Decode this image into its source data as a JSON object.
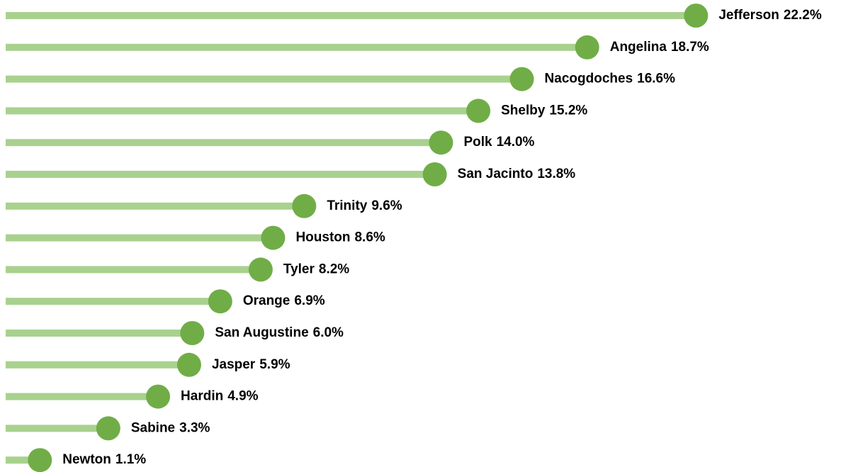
{
  "chart_data": {
    "type": "lollipop",
    "categories": [
      "Jefferson",
      "Angelina",
      "Nacogdoches",
      "Shelby",
      "Polk",
      "San Jacinto",
      "Trinity",
      "Houston",
      "Tyler",
      "Orange",
      "San Augustine",
      "Jasper",
      "Hardin",
      "Sabine",
      "Newton"
    ],
    "values": [
      22.2,
      18.7,
      16.6,
      15.2,
      14.0,
      13.8,
      9.6,
      8.6,
      8.2,
      6.9,
      6.0,
      5.9,
      4.9,
      3.3,
      1.1
    ],
    "value_labels": [
      "22.2%",
      "18.7%",
      "16.6%",
      "15.2%",
      "14.0%",
      "13.8%",
      "9.6%",
      "8.6%",
      "8.2%",
      "6.9%",
      "6.0%",
      "5.9%",
      "4.9%",
      "3.3%",
      "1.1%"
    ],
    "stem_color": "#a9d18e",
    "color": "#70ad47",
    "xlim": [
      0,
      27
    ]
  }
}
